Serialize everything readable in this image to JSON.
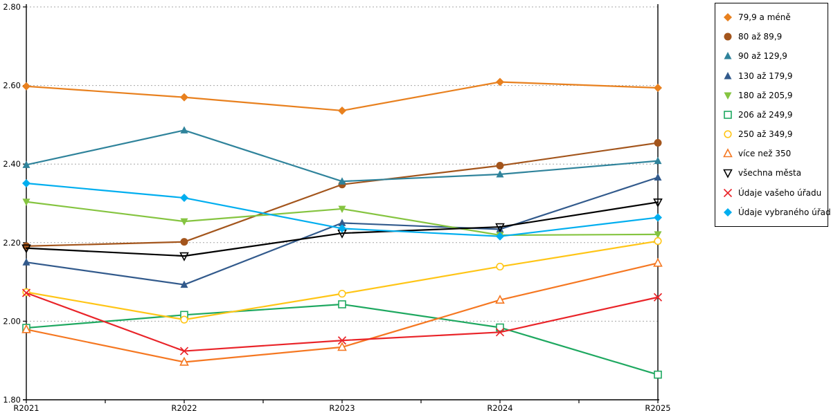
{
  "chart_data": {
    "type": "line",
    "title": "",
    "xlabel": "",
    "ylabel": "",
    "categories": [
      "R2021",
      "R2022",
      "R2023",
      "R2024",
      "R2025"
    ],
    "y_axis": {
      "min": 1.8,
      "max": 2.8,
      "step": 0.2,
      "tick_labels": [
        "2.80",
        "2.60",
        "2.40",
        "2.20",
        "2.00",
        "1.80"
      ]
    },
    "grid": "horizontal-dotted",
    "grid_color": "#a6a6a6",
    "axis_color": "#000000",
    "legend_position": "right",
    "series": [
      {
        "name": "79,9 a méně",
        "color": "#e8801e",
        "marker": "diamond-filled",
        "values": [
          2.598,
          2.57,
          2.536,
          2.609,
          2.594
        ]
      },
      {
        "name": "80 až 89,9",
        "color": "#a3551c",
        "marker": "circle-filled",
        "values": [
          2.191,
          2.202,
          2.348,
          2.396,
          2.454
        ]
      },
      {
        "name": "90 až 129,9",
        "color": "#2f839b",
        "marker": "triangle-up-filled",
        "values": [
          2.398,
          2.486,
          2.356,
          2.374,
          2.408
        ]
      },
      {
        "name": "130 až 179,9",
        "color": "#325a8c",
        "marker": "triangle-up-filled",
        "values": [
          2.15,
          2.093,
          2.25,
          2.234,
          2.366
        ]
      },
      {
        "name": "180 až 205,9",
        "color": "#85c440",
        "marker": "triangle-down-filled",
        "values": [
          2.304,
          2.254,
          2.286,
          2.219,
          2.221
        ]
      },
      {
        "name": "206 až 249,9",
        "color": "#1ea860",
        "marker": "square-open",
        "values": [
          1.983,
          2.016,
          2.043,
          1.984,
          1.864
        ]
      },
      {
        "name": "250 až 349,9",
        "color": "#ffc516",
        "marker": "circle-open",
        "values": [
          2.074,
          2.004,
          2.07,
          2.139,
          2.204
        ]
      },
      {
        "name": "více než 350",
        "color": "#f57721",
        "marker": "triangle-up-open",
        "values": [
          1.979,
          1.896,
          1.934,
          2.054,
          2.148
        ]
      },
      {
        "name": "všechna města",
        "color": "#000000",
        "marker": "triangle-down-open",
        "values": [
          2.186,
          2.166,
          2.224,
          2.24,
          2.303
        ]
      },
      {
        "name": "Údaje vašeho úřadu",
        "color": "#e92429",
        "marker": "x",
        "values": [
          2.072,
          1.924,
          1.951,
          1.972,
          2.061
        ]
      },
      {
        "name": "Údaje vybraného úřadu",
        "color": "#00aeef",
        "marker": "diamond-filled",
        "values": [
          2.351,
          2.314,
          2.236,
          2.216,
          2.264
        ]
      }
    ]
  }
}
